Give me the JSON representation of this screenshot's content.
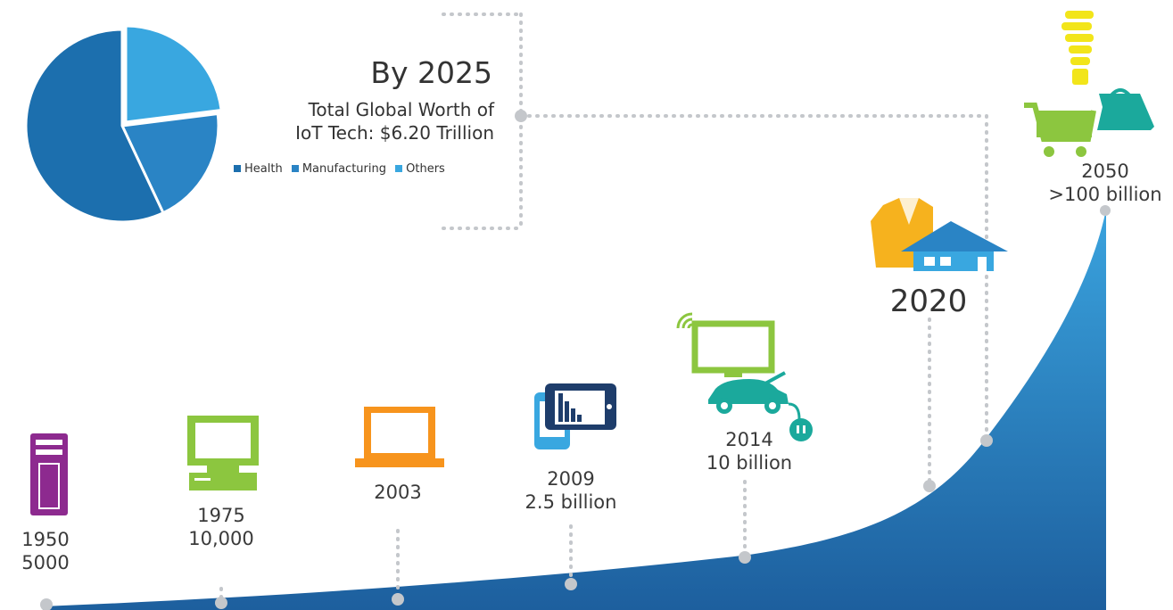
{
  "headline": "By 2025",
  "subtitle_line1": "Total Global Worth of",
  "subtitle_line2": "IoT Tech: $6.20 Trillion",
  "pie_legend": [
    {
      "label": "Health",
      "color": "#1c6fae"
    },
    {
      "label": "Manufacturing",
      "color": "#2a84c5"
    },
    {
      "label": "Others",
      "color": "#39a7e0"
    }
  ],
  "milestones": [
    {
      "year": "1950",
      "count": "5000",
      "icon": "server-tower-icon"
    },
    {
      "year": "1975",
      "count": "10,000",
      "icon": "desktop-computer-icon"
    },
    {
      "year": "2003",
      "count": "",
      "icon": "laptop-icon"
    },
    {
      "year": "2009",
      "count": "2.5 billion",
      "icon": "smartphone-tablet-icon"
    },
    {
      "year": "2014",
      "count": "10 billion",
      "icon": "wifi-tv-car-plug-icon"
    },
    {
      "year": "2020",
      "count": "",
      "icon": "jacket-house-icon"
    },
    {
      "year": "2050",
      "count": ">100 billion",
      "icon": "bulb-cart-bag-icon"
    }
  ],
  "colors": {
    "curve_top": "#3aa3de",
    "curve_bottom": "#1d5f9e",
    "dots": "#c4c7cb",
    "purple": "#8d2a8f",
    "green": "#8cc63f",
    "orange": "#f7941d",
    "navy": "#1e3d6b",
    "teal": "#1ba99c",
    "yellow": "#f2e51a",
    "jacket": "#f6b21e"
  },
  "chart_data": [
    {
      "type": "area",
      "x": [
        1950,
        1975,
        2003,
        2009,
        2014,
        2020,
        2050
      ],
      "series": [
        {
          "values": [
            5000,
            10000,
            null,
            2500000000,
            10000000000,
            null,
            100000000000
          ]
        }
      ],
      "point_labels": [
        "1950 5000",
        "1975 10,000",
        "2003",
        "2009 2.5 billion",
        "2014 10 billion",
        "2020",
        "2050 >100 billion"
      ]
    },
    {
      "type": "pie",
      "title": "By 2025",
      "subtitle": "Total Global Worth of IoT Tech: $6.20 Trillion",
      "labels": [
        "Health",
        "Manufacturing",
        "Others"
      ],
      "values": [
        57,
        20,
        23
      ],
      "legend": "inline below title"
    }
  ]
}
